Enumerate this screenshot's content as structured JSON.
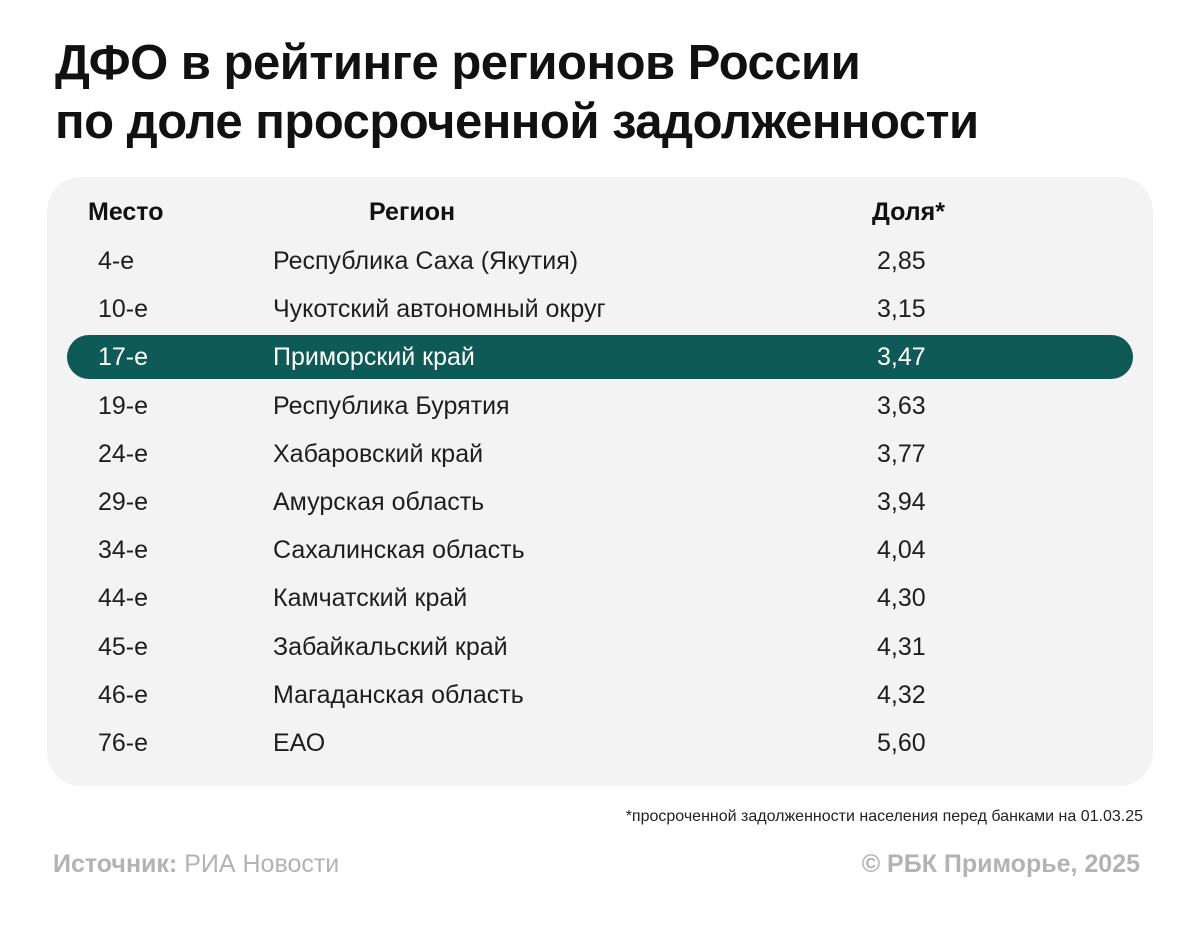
{
  "title": {
    "line1": "ДФО в рейтинге регионов России",
    "line2": "по доле просроченной задолженности"
  },
  "chart_data": {
    "type": "table",
    "title": "ДФО в рейтинге регионов России по доле просроченной задолженности",
    "columns": [
      "Место",
      "Регион",
      "Доля*"
    ],
    "highlighted_region": "Приморский край",
    "rows": [
      {
        "place": "4-е",
        "region": "Республика Саха (Якутия)",
        "share": "2,85"
      },
      {
        "place": "10-е",
        "region": "Чукотский автономный округ",
        "share": "3,15"
      },
      {
        "place": "17-е",
        "region": "Приморский край",
        "share": "3,47"
      },
      {
        "place": "19-е",
        "region": "Республика Бурятия",
        "share": "3,63"
      },
      {
        "place": "24-е",
        "region": "Хабаровский край",
        "share": "3,77"
      },
      {
        "place": "29-е",
        "region": "Амурская область",
        "share": "3,94"
      },
      {
        "place": "34-е",
        "region": "Сахалинская область",
        "share": "4,04"
      },
      {
        "place": "44-е",
        "region": "Камчатский край",
        "share": "4,30"
      },
      {
        "place": "45-е",
        "region": "Забайкальский край",
        "share": "4,31"
      },
      {
        "place": "46-е",
        "region": "Магаданская область",
        "share": "4,32"
      },
      {
        "place": "76-е",
        "region": "ЕАО",
        "share": "5,60"
      }
    ]
  },
  "footnote": "*просроченной задолженности населения перед банками на 01.03.25",
  "source": {
    "label": "Источник:",
    "value": "РИА Новости"
  },
  "credit": "© РБК Приморье, 2025",
  "colors": {
    "highlight": "#0e5a57",
    "panel": "#f3f3f3",
    "muted": "#b3b3b3"
  }
}
